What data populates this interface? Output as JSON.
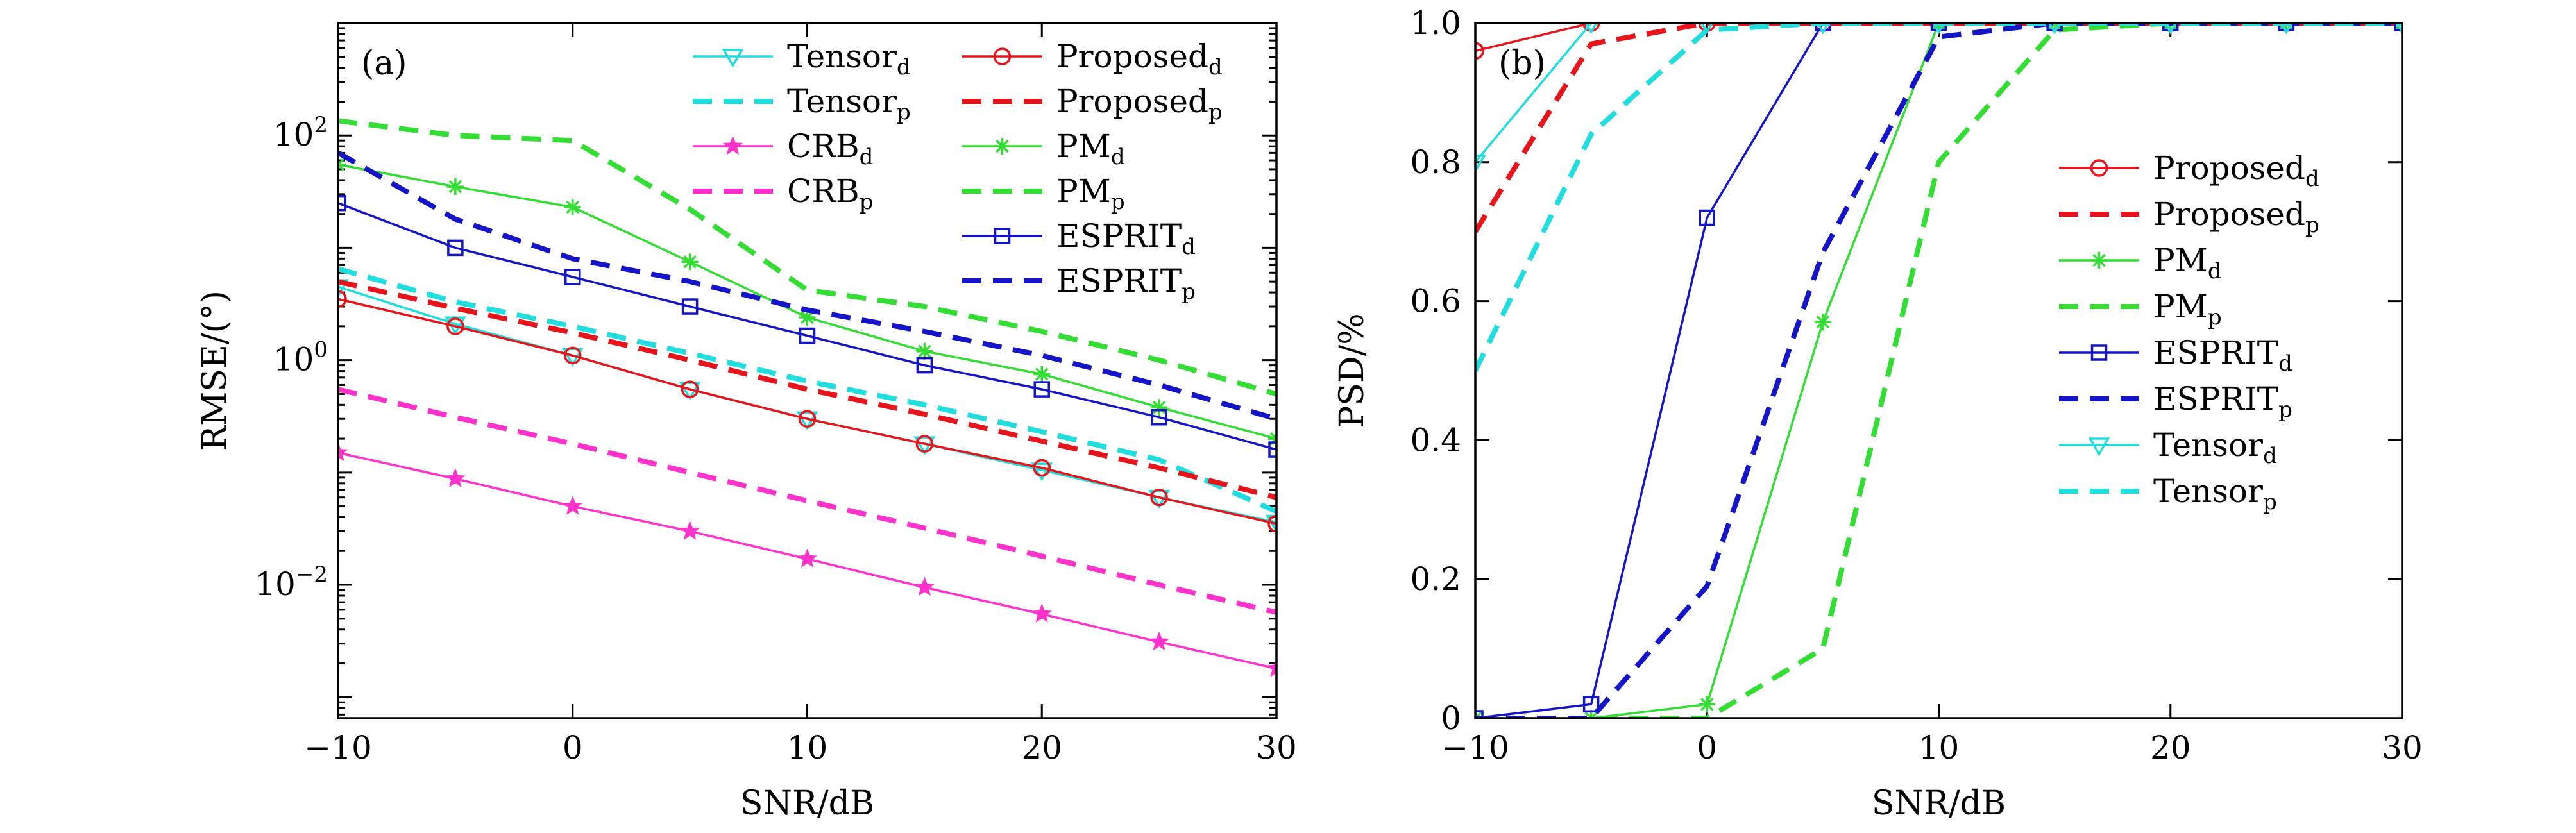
{
  "colors": {
    "red": "#e8141b",
    "green": "#33dd33",
    "blue": "#1515c8",
    "cyan": "#22dddd",
    "magenta": "#ff33cc",
    "frame": "#000000"
  },
  "chart_data": [
    {
      "type": "line",
      "panel_label": "(a)",
      "xlabel": "SNR/dB",
      "ylabel": "RMSE/(°)",
      "yscale": "log",
      "xlim": [
        -10,
        30
      ],
      "ylim": [
        0.00065,
        1000
      ],
      "xticks": [
        -10,
        0,
        10,
        20,
        30
      ],
      "xtick_labels": [
        "−10",
        "0",
        "10",
        "20",
        "30"
      ],
      "yticks": [
        0.01,
        1,
        100
      ],
      "ytick_labels": [
        {
          "base": "10",
          "exp": "−2"
        },
        {
          "base": "10",
          "exp": "0"
        },
        {
          "base": "10",
          "exp": "2"
        }
      ],
      "legend_position": "top-right (two columns)",
      "x": [
        -10,
        -5,
        0,
        5,
        10,
        15,
        20,
        25,
        30
      ],
      "series": [
        {
          "name": "Tensor",
          "sub": "d",
          "color": "cyan",
          "dash": false,
          "marker": "triangle-down",
          "values": [
            4.5,
            2.1,
            1.1,
            0.55,
            0.3,
            0.18,
            0.105,
            0.06,
            0.036
          ]
        },
        {
          "name": "Tensor",
          "sub": "p",
          "color": "cyan",
          "dash": true,
          "marker": "none",
          "values": [
            6.5,
            3.3,
            2.0,
            1.15,
            0.65,
            0.4,
            0.23,
            0.13,
            0.045
          ]
        },
        {
          "name": "CRB",
          "sub": "d",
          "color": "magenta",
          "dash": false,
          "marker": "star",
          "values": [
            0.15,
            0.088,
            0.05,
            0.03,
            0.017,
            0.0095,
            0.0055,
            0.0031,
            0.0018
          ]
        },
        {
          "name": "CRB",
          "sub": "p",
          "color": "magenta",
          "dash": true,
          "marker": "none",
          "values": [
            0.55,
            0.31,
            0.18,
            0.1,
            0.056,
            0.032,
            0.018,
            0.01,
            0.0057
          ]
        },
        {
          "name": "Proposed",
          "sub": "d",
          "color": "red",
          "dash": false,
          "marker": "circle",
          "values": [
            3.5,
            2.0,
            1.1,
            0.55,
            0.3,
            0.18,
            0.11,
            0.06,
            0.035
          ]
        },
        {
          "name": "Proposed",
          "sub": "p",
          "color": "red",
          "dash": true,
          "marker": "none",
          "values": [
            5.0,
            2.9,
            1.75,
            1.0,
            0.55,
            0.33,
            0.19,
            0.11,
            0.06
          ]
        },
        {
          "name": "PM",
          "sub": "d",
          "color": "green",
          "dash": false,
          "marker": "asterisk",
          "values": [
            55,
            35,
            23,
            7.5,
            2.4,
            1.2,
            0.75,
            0.38,
            0.2
          ]
        },
        {
          "name": "PM",
          "sub": "p",
          "color": "green",
          "dash": true,
          "marker": "none",
          "values": [
            135,
            100,
            90,
            22,
            4.2,
            3.0,
            1.8,
            1.0,
            0.5
          ]
        },
        {
          "name": "ESPRIT",
          "sub": "d",
          "color": "blue",
          "dash": false,
          "marker": "square",
          "values": [
            25,
            10,
            5.5,
            3.0,
            1.65,
            0.9,
            0.55,
            0.31,
            0.16
          ]
        },
        {
          "name": "ESPRIT",
          "sub": "p",
          "color": "blue",
          "dash": true,
          "marker": "none",
          "values": [
            70,
            18,
            8,
            5,
            2.8,
            1.8,
            1.1,
            0.6,
            0.3
          ]
        }
      ]
    },
    {
      "type": "line",
      "panel_label": "(b)",
      "xlabel": "SNR/dB",
      "ylabel": "PSD/%",
      "yscale": "linear",
      "xlim": [
        -10,
        30
      ],
      "ylim": [
        0,
        1
      ],
      "xticks": [
        -10,
        0,
        10,
        20,
        30
      ],
      "xtick_labels": [
        "−10",
        "0",
        "10",
        "20",
        "30"
      ],
      "yticks": [
        0,
        0.2,
        0.4,
        0.6,
        0.8,
        1.0
      ],
      "ytick_labels": [
        "0",
        "0.2",
        "0.4",
        "0.6",
        "0.8",
        "1.0"
      ],
      "legend_position": "right (single column)",
      "x": [
        -10,
        -5,
        0,
        5,
        10,
        15,
        20,
        25,
        30
      ],
      "series": [
        {
          "name": "Proposed",
          "sub": "d",
          "color": "red",
          "dash": false,
          "marker": "circle",
          "values": [
            0.96,
            1.0,
            1.0,
            1.0,
            1.0,
            1.0,
            1.0,
            1.0,
            1.0
          ]
        },
        {
          "name": "Proposed",
          "sub": "p",
          "color": "red",
          "dash": true,
          "marker": "none",
          "values": [
            0.7,
            0.97,
            1.0,
            1.0,
            1.0,
            1.0,
            1.0,
            1.0,
            1.0
          ]
        },
        {
          "name": "PM",
          "sub": "d",
          "color": "green",
          "dash": false,
          "marker": "asterisk",
          "values": [
            0.0,
            0.0,
            0.02,
            0.57,
            1.0,
            1.0,
            1.0,
            1.0,
            1.0
          ]
        },
        {
          "name": "PM",
          "sub": "p",
          "color": "green",
          "dash": true,
          "marker": "none",
          "values": [
            0.0,
            0.0,
            0.0,
            0.1,
            0.8,
            0.99,
            1.0,
            1.0,
            1.0
          ]
        },
        {
          "name": "ESPRIT",
          "sub": "d",
          "color": "blue",
          "dash": false,
          "marker": "square",
          "values": [
            0.0,
            0.02,
            0.72,
            1.0,
            1.0,
            1.0,
            1.0,
            1.0,
            1.0
          ]
        },
        {
          "name": "ESPRIT",
          "sub": "p",
          "color": "blue",
          "dash": true,
          "marker": "none",
          "values": [
            0.0,
            0.0,
            0.19,
            0.67,
            0.98,
            1.0,
            1.0,
            1.0,
            1.0
          ]
        },
        {
          "name": "Tensor",
          "sub": "d",
          "color": "cyan",
          "dash": false,
          "marker": "triangle-down",
          "values": [
            0.8,
            1.0,
            1.0,
            1.0,
            1.0,
            1.0,
            1.0,
            1.0,
            1.0
          ]
        },
        {
          "name": "Tensor",
          "sub": "p",
          "color": "cyan",
          "dash": true,
          "marker": "none",
          "values": [
            0.5,
            0.84,
            0.99,
            1.0,
            1.0,
            1.0,
            1.0,
            1.0,
            1.0
          ]
        }
      ]
    }
  ]
}
